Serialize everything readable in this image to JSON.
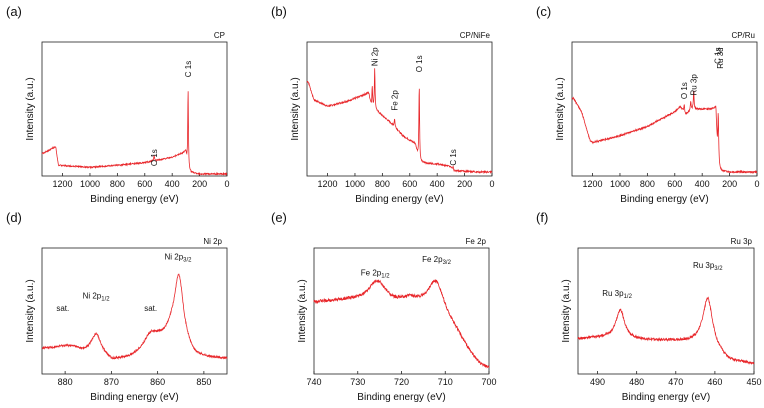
{
  "colors": {
    "line": "#e8262a",
    "axis": "#222222",
    "background": "#ffffff"
  },
  "chart_data": [
    {
      "panel": "(a)",
      "title": "CP",
      "type": "line",
      "xlabel": "Binding energy (eV)",
      "ylabel": "Intensity (a.u.)",
      "xlim": [
        1350,
        0
      ],
      "x_ticks": [
        1200,
        1000,
        800,
        600,
        400,
        200,
        0
      ],
      "background": [
        [
          1340,
          0.17
        ],
        [
          1250,
          0.22
        ],
        [
          1230,
          0.08
        ],
        [
          1000,
          0.065
        ],
        [
          800,
          0.08
        ],
        [
          600,
          0.1
        ],
        [
          400,
          0.14
        ],
        [
          300,
          0.18
        ],
        [
          285,
          0.03
        ],
        [
          200,
          0.015
        ],
        [
          100,
          0.015
        ],
        [
          0,
          0.015
        ]
      ],
      "peaks": [
        {
          "label": "C 1s",
          "x": 284,
          "height": 0.62,
          "width": 3
        },
        {
          "label": "O 1s",
          "x": 532,
          "height": 0.04,
          "width": 3
        }
      ],
      "annotations": [
        {
          "label": "C 1s",
          "x": 284,
          "y": 0.86
        },
        {
          "label": "O 1s",
          "x": 532,
          "y": 0.2
        }
      ],
      "noise": 0.005
    },
    {
      "panel": "(b)",
      "title": "CP/NiFe",
      "type": "line",
      "xlabel": "Binding energy (eV)",
      "ylabel": "Intensity (a.u.)",
      "xlim": [
        1350,
        0
      ],
      "x_ticks": [
        1200,
        1000,
        800,
        600,
        400,
        200,
        0
      ],
      "background": [
        [
          1340,
          0.7
        ],
        [
          1300,
          0.57
        ],
        [
          1200,
          0.52
        ],
        [
          1050,
          0.56
        ],
        [
          1000,
          0.58
        ],
        [
          900,
          0.62
        ],
        [
          880,
          0.52
        ],
        [
          800,
          0.45
        ],
        [
          720,
          0.38
        ],
        [
          650,
          0.3
        ],
        [
          560,
          0.24
        ],
        [
          530,
          0.1
        ],
        [
          400,
          0.09
        ],
        [
          300,
          0.07
        ],
        [
          280,
          0.04
        ],
        [
          100,
          0.03
        ],
        [
          0,
          0.03
        ]
      ],
      "peaks": [
        {
          "label": "Ni 2p",
          "x": 856,
          "height": 0.3,
          "width": 3
        },
        {
          "label": "Ni 2p",
          "x": 874,
          "height": 0.15,
          "width": 3
        },
        {
          "label": "Fe 2p",
          "x": 711,
          "height": 0.06,
          "width": 3
        },
        {
          "label": "O 1s",
          "x": 531,
          "height": 0.58,
          "width": 3
        },
        {
          "label": "C 1s",
          "x": 284,
          "height": 0.03,
          "width": 3
        }
      ],
      "annotations": [
        {
          "label": "Ni 2p",
          "x": 856,
          "y": 0.96
        },
        {
          "label": "O 1s",
          "x": 531,
          "y": 0.9
        },
        {
          "label": "Fe 2p",
          "x": 711,
          "y": 0.64
        },
        {
          "label": "C 1s",
          "x": 284,
          "y": 0.2
        }
      ],
      "noise": 0.006
    },
    {
      "panel": "(c)",
      "title": "CP/Ru",
      "type": "line",
      "xlabel": "Binding energy (eV)",
      "ylabel": "Intensity (a.u.)",
      "xlim": [
        1350,
        0
      ],
      "x_ticks": [
        1200,
        1000,
        800,
        600,
        400,
        200,
        0
      ],
      "background": [
        [
          1340,
          0.58
        ],
        [
          1280,
          0.48
        ],
        [
          1220,
          0.27
        ],
        [
          1200,
          0.25
        ],
        [
          1000,
          0.3
        ],
        [
          800,
          0.37
        ],
        [
          600,
          0.48
        ],
        [
          560,
          0.52
        ],
        [
          520,
          0.46
        ],
        [
          470,
          0.5
        ],
        [
          400,
          0.5
        ],
        [
          300,
          0.5
        ],
        [
          285,
          0.04
        ],
        [
          200,
          0.03
        ],
        [
          100,
          0.03
        ],
        [
          0,
          0.03
        ]
      ],
      "peaks": [
        {
          "label": "C 1s / Ru 3d",
          "x": 283,
          "height": 0.44,
          "width": 4
        },
        {
          "label": "Ru 3p",
          "x": 462,
          "height": 0.14,
          "width": 3
        },
        {
          "label": "Ru 3p",
          "x": 484,
          "height": 0.07,
          "width": 3
        },
        {
          "label": "O 1s",
          "x": 531,
          "height": 0.06,
          "width": 3
        }
      ],
      "annotations": [
        {
          "label": "O 1s",
          "x": 531,
          "y": 0.7
        },
        {
          "label": "Ru 3p",
          "x": 462,
          "y": 0.76
        },
        {
          "label": "C 1s",
          "x": 290,
          "y": 0.96
        },
        {
          "label": "Ru 3d",
          "x": 270,
          "y": 0.96
        }
      ],
      "noise": 0.006
    },
    {
      "panel": "(d)",
      "title": "Ni 2p",
      "type": "line",
      "xlabel": "Binding energy (eV)",
      "ylabel": "Intensity (a.u.)",
      "xlim": [
        885,
        845
      ],
      "x_ticks": [
        880,
        870,
        860,
        850
      ],
      "background": [
        [
          885,
          0.2
        ],
        [
          878,
          0.2
        ],
        [
          876,
          0.17
        ],
        [
          873,
          0.17
        ],
        [
          870,
          0.1
        ],
        [
          866,
          0.12
        ],
        [
          863,
          0.16
        ],
        [
          857,
          0.3
        ],
        [
          852,
          0.13
        ],
        [
          848,
          0.12
        ],
        [
          845,
          0.12
        ]
      ],
      "peaks": [
        {
          "label": "Ni 2p3/2",
          "x": 855.4,
          "height": 0.53,
          "width": 1.2
        },
        {
          "label": "Ni 2p1/2",
          "x": 873.3,
          "height": 0.14,
          "width": 1.3
        },
        {
          "label": "sat. (2p3/2)",
          "x": 861.5,
          "height": 0.12,
          "width": 2.0
        },
        {
          "label": "sat. (2p1/2)",
          "x": 880,
          "height": 0.02,
          "width": 2.2
        }
      ],
      "annotations": [
        {
          "label": "sat.",
          "x": 880.5,
          "y": 0.5
        },
        {
          "label": "Ni 2p",
          "sub": "1/2",
          "x": 873.3,
          "y": 0.6
        },
        {
          "label": "sat.",
          "x": 861.5,
          "y": 0.5
        },
        {
          "label": "Ni 2p",
          "sub": "3/2",
          "x": 855.6,
          "y": 0.91
        }
      ],
      "noise": 0.008
    },
    {
      "panel": "(e)",
      "title": "Fe 2p",
      "type": "line",
      "xlabel": "Binding energy (eV)",
      "ylabel": "Intensity (a.u.)",
      "xlim": [
        740,
        700
      ],
      "x_ticks": [
        740,
        730,
        720,
        710,
        700
      ],
      "background": [
        [
          740,
          0.57
        ],
        [
          732,
          0.58
        ],
        [
          728,
          0.57
        ],
        [
          722,
          0.55
        ],
        [
          718,
          0.58
        ],
        [
          713,
          0.5
        ],
        [
          708,
          0.35
        ],
        [
          704,
          0.15
        ],
        [
          702,
          0.07
        ],
        [
          700,
          0.04
        ]
      ],
      "peaks": [
        {
          "label": "Fe 2p1/2",
          "x": 725.5,
          "height": 0.17,
          "width": 2.5
        },
        {
          "label": "Fe 2p3/2",
          "x": 712,
          "height": 0.26,
          "width": 2.2
        }
      ],
      "annotations": [
        {
          "label": "Fe 2p",
          "sub": "1/2",
          "x": 726,
          "y": 0.78
        },
        {
          "label": "Fe 2p",
          "sub": "3/2",
          "x": 712,
          "y": 0.89
        }
      ],
      "noise": 0.012
    },
    {
      "panel": "(f)",
      "title": "Ru 3p",
      "type": "line",
      "xlabel": "Binding energy (eV)",
      "ylabel": "Intensity (a.u.)",
      "xlim": [
        495,
        450
      ],
      "x_ticks": [
        490,
        480,
        470,
        460,
        450
      ],
      "background": [
        [
          495,
          0.28
        ],
        [
          488,
          0.29
        ],
        [
          480,
          0.27
        ],
        [
          470,
          0.26
        ],
        [
          464,
          0.24
        ],
        [
          456,
          0.1
        ],
        [
          450,
          0.08
        ]
      ],
      "peaks": [
        {
          "label": "Ru 3p1/2",
          "x": 484.2,
          "height": 0.23,
          "width": 1.3
        },
        {
          "label": "Ru 3p3/2",
          "x": 461.8,
          "height": 0.4,
          "width": 1.5
        }
      ],
      "annotations": [
        {
          "label": "Ru 3p",
          "sub": "1/2",
          "x": 485,
          "y": 0.62
        },
        {
          "label": "Ru 3p",
          "sub": "3/2",
          "x": 461.8,
          "y": 0.84
        }
      ],
      "noise": 0.01
    }
  ]
}
